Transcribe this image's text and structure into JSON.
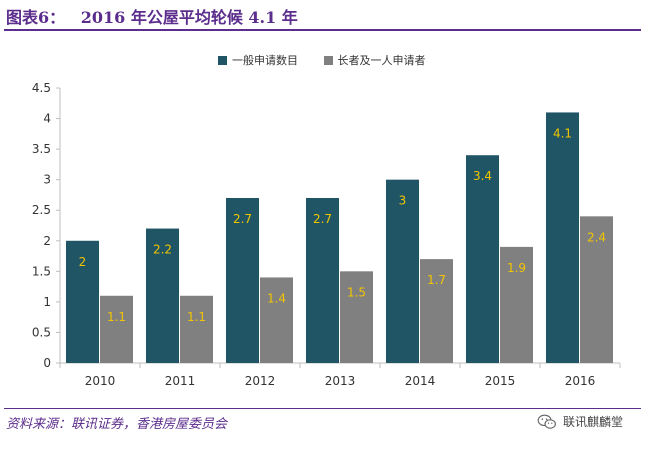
{
  "figure": {
    "label": "图表6：",
    "title": "2016 年公屋平均轮候 4.1 年",
    "source": "资料来源：联讯证券，香港房屋委员会",
    "watermark": "联讯麒麟堂"
  },
  "colors": {
    "series1": "#1f5565",
    "series2": "#808080",
    "label_text": "#f2c400",
    "accent": "#5b2d8c"
  },
  "chart_data": {
    "type": "bar",
    "title": "2016 年公屋平均轮候 4.1 年",
    "xlabel": "",
    "ylabel": "",
    "categories": [
      "2010",
      "2011",
      "2012",
      "2013",
      "2014",
      "2015",
      "2016"
    ],
    "series": [
      {
        "name": "一般申请数目",
        "values": [
          2,
          2.2,
          2.7,
          2.7,
          3,
          3.4,
          4.1
        ],
        "labels": [
          "2",
          "2.2",
          "2.7",
          "2.7",
          "3",
          "3.4",
          "4.1"
        ]
      },
      {
        "name": "长者及一人申请者",
        "values": [
          1.1,
          1.1,
          1.4,
          1.5,
          1.7,
          1.9,
          2.4
        ],
        "labels": [
          "1.1",
          "1.1",
          "1.4",
          "1.5",
          "1.7",
          "1.9",
          "2.4"
        ]
      }
    ],
    "ylim": [
      0,
      4.5
    ],
    "yticks": [
      0,
      0.5,
      1,
      1.5,
      2,
      2.5,
      3,
      3.5,
      4,
      4.5
    ],
    "ytick_labels": [
      "0",
      "0.5",
      "1",
      "1.5",
      "2",
      "2.5",
      "3",
      "3.5",
      "4",
      "4.5"
    ],
    "legend_position": "top",
    "grid": false
  }
}
